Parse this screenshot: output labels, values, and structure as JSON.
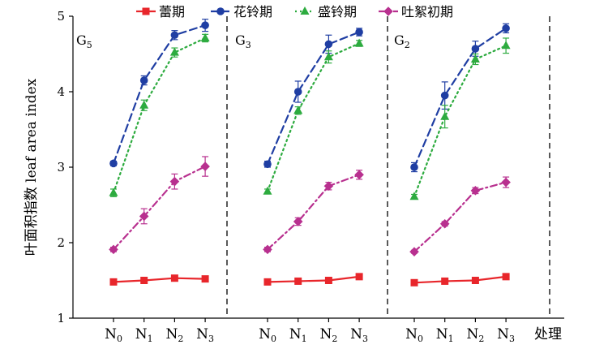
{
  "chart_data": {
    "type": "line",
    "ylabel_cn": "叶面积指数",
    "ylabel_en": "leaf area index",
    "xlabel": "处理",
    "ylim": [
      1,
      5
    ],
    "yticks": [
      1,
      2,
      3,
      4,
      5
    ],
    "categories": [
      {
        "main": "N",
        "sub": "0"
      },
      {
        "main": "N",
        "sub": "1"
      },
      {
        "main": "N",
        "sub": "2"
      },
      {
        "main": "N",
        "sub": "3"
      }
    ],
    "panels": [
      {
        "label_main": "G",
        "label_sub": "5"
      },
      {
        "label_main": "G",
        "label_sub": "3"
      },
      {
        "label_main": "G",
        "label_sub": "2"
      }
    ],
    "legend_position": "top",
    "series": [
      {
        "name": "蕾期",
        "color": "#e8262b",
        "marker": "square",
        "dash": "solid",
        "values": [
          [
            1.48,
            1.5,
            1.53,
            1.52
          ],
          [
            1.48,
            1.49,
            1.5,
            1.55
          ],
          [
            1.47,
            1.49,
            1.5,
            1.55
          ]
        ],
        "errors": [
          [
            0.02,
            0.02,
            0.02,
            0.02
          ],
          [
            0.02,
            0.02,
            0.02,
            0.03
          ],
          [
            0.02,
            0.02,
            0.02,
            0.03
          ]
        ]
      },
      {
        "name": "花铃期",
        "color": "#1f3ea3",
        "marker": "circle",
        "dash": "dashed",
        "values": [
          [
            3.05,
            4.15,
            4.75,
            4.88
          ],
          [
            3.04,
            4.0,
            4.63,
            4.79
          ],
          [
            3.0,
            3.95,
            4.57,
            4.84
          ]
        ],
        "errors": [
          [
            0.03,
            0.06,
            0.06,
            0.08
          ],
          [
            0.04,
            0.14,
            0.12,
            0.05
          ],
          [
            0.06,
            0.18,
            0.1,
            0.06
          ]
        ]
      },
      {
        "name": "盛铃期",
        "color": "#2dab3f",
        "marker": "triangle",
        "dash": "dotted",
        "values": [
          [
            2.66,
            3.82,
            4.52,
            4.71
          ],
          [
            2.68,
            3.75,
            4.46,
            4.64
          ],
          [
            2.61,
            3.67,
            4.43,
            4.61
          ]
        ],
        "errors": [
          [
            0.05,
            0.07,
            0.06,
            0.05
          ],
          [
            0.03,
            0.05,
            0.08,
            0.04
          ],
          [
            0.03,
            0.15,
            0.07,
            0.1
          ]
        ]
      },
      {
        "name": "吐絮初期",
        "color": "#b8308f",
        "marker": "diamond",
        "dash": "dashdot",
        "values": [
          [
            1.91,
            2.35,
            2.81,
            3.01
          ],
          [
            1.91,
            2.28,
            2.75,
            2.9
          ],
          [
            1.88,
            2.25,
            2.69,
            2.8
          ]
        ],
        "errors": [
          [
            0.03,
            0.1,
            0.1,
            0.13
          ],
          [
            0.03,
            0.05,
            0.05,
            0.06
          ],
          [
            0.02,
            0.03,
            0.04,
            0.07
          ]
        ]
      }
    ]
  }
}
